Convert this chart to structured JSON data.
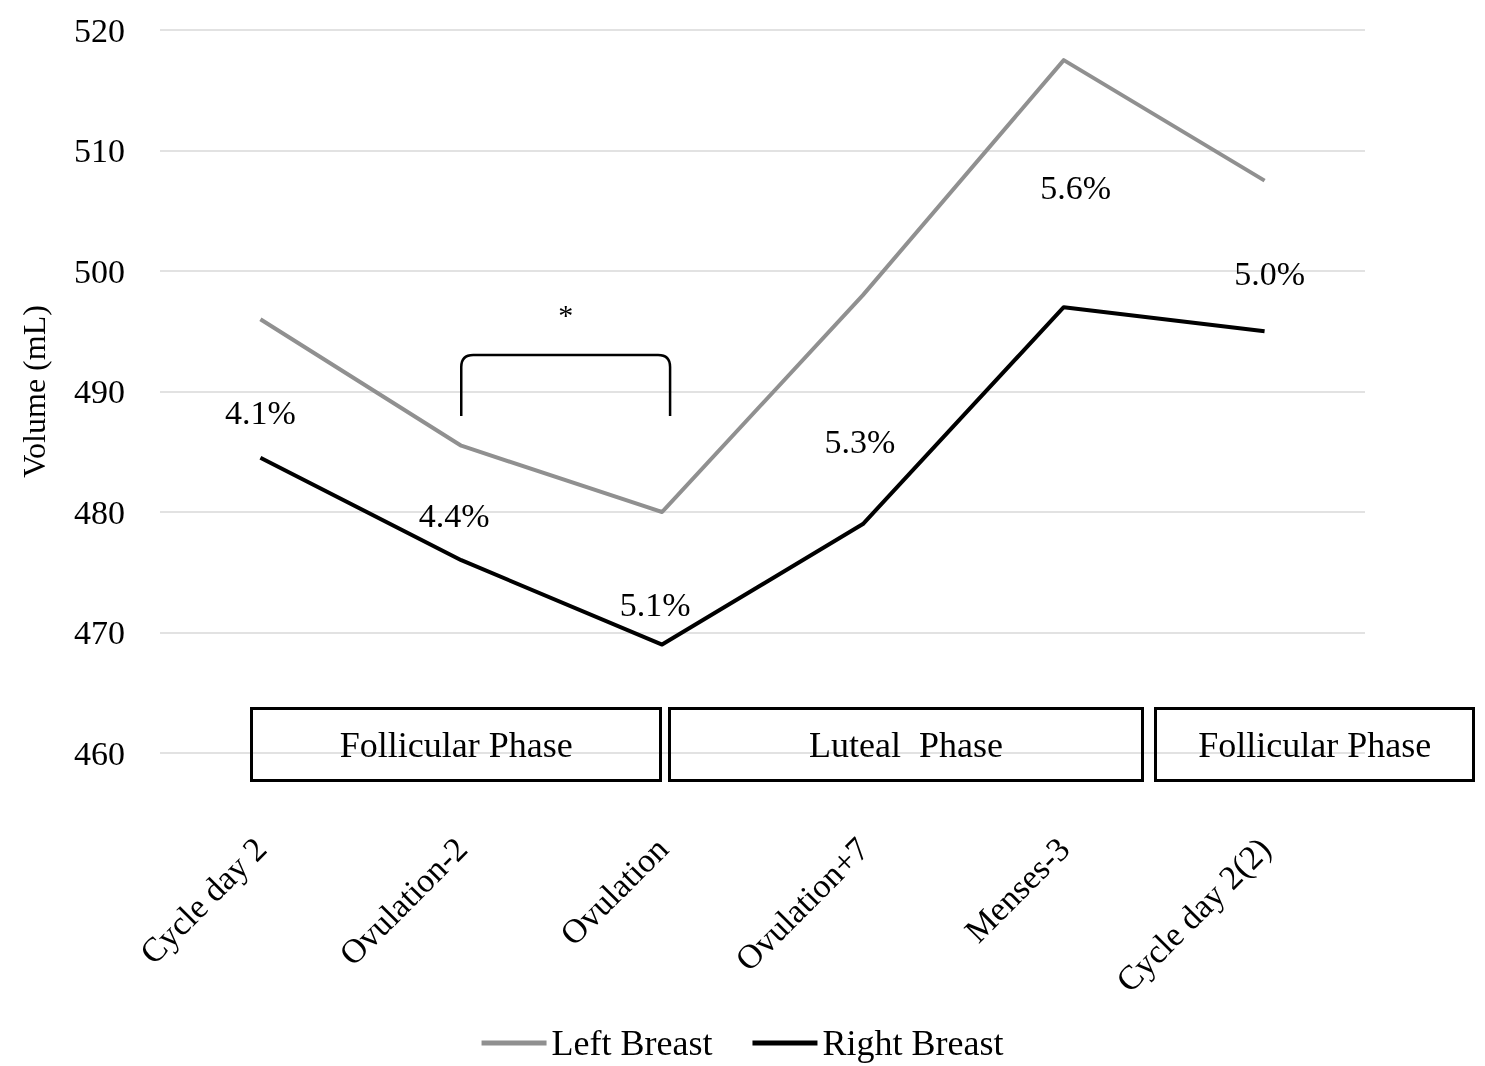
{
  "chart_data": {
    "type": "line",
    "ylabel": "Volume (mL)",
    "categories": [
      "Cycle day 2",
      "Ovulation-2",
      "Ovulation",
      "Ovulation+7",
      "Menses-3",
      "Cycle day 2(2)"
    ],
    "series": [
      {
        "name": "Left Breast",
        "color": "#909090",
        "values": [
          496,
          485.5,
          480,
          498,
          517.5,
          507.5
        ]
      },
      {
        "name": "Right Breast",
        "color": "#000000",
        "values": [
          484.5,
          476,
          469,
          479,
          497,
          495
        ]
      }
    ],
    "ylim": [
      460,
      520
    ],
    "yticks": [
      460,
      470,
      480,
      490,
      500,
      510,
      520
    ],
    "grid": "y",
    "legend": "bottom",
    "marker": "none",
    "line_style": "solid",
    "annotations": [
      "4.1%",
      "4.4%",
      "5.1%",
      "5.3%",
      "5.6%",
      "5.0%",
      "*",
      "Follicular Phase",
      "Luteal  Phase",
      "Follicular Phase"
    ]
  }
}
